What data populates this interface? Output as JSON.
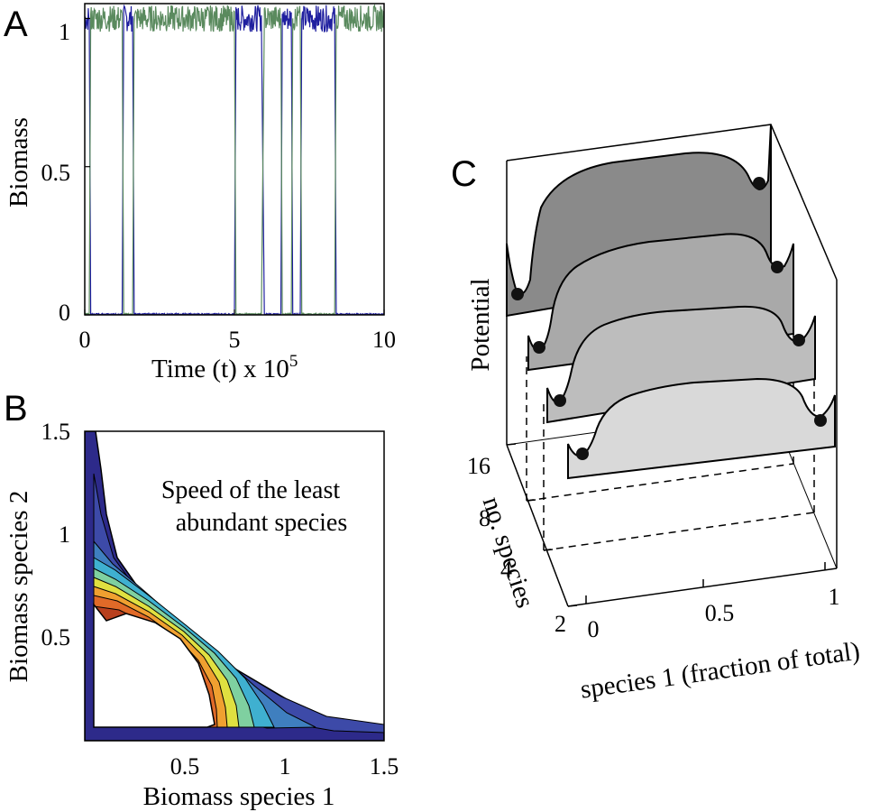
{
  "colors": {
    "series_1": "#1f1f9f",
    "series_2": "#5a8a5e",
    "contour_outer": "#2d2a8a",
    "contour_inner": "#b8401e",
    "potential_back": "#8a8a8a",
    "potential_front": "#d9d9d9"
  },
  "chart_data": [
    {
      "panel": "A",
      "type": "line",
      "xlabel": "Time (t) x 10",
      "xlabel_sup": "5",
      "ylabel": "Biomass",
      "xlim": [
        0,
        10
      ],
      "ylim": [
        0,
        1.05
      ],
      "xticks": [
        "0",
        "5",
        "10"
      ],
      "yticks": [
        "0",
        "0.5",
        "1"
      ],
      "series": [
        {
          "color": "#1f1f9f",
          "x": [
            0,
            0.15,
            0.2,
            1.25,
            1.3,
            1.6,
            1.65,
            5.0,
            5.05,
            5.9,
            6.0,
            6.55,
            6.6,
            6.9,
            6.95,
            7.2,
            7.25,
            8.35,
            8.4,
            10
          ],
          "y": [
            1,
            1,
            0,
            0,
            1,
            1,
            0,
            0,
            1,
            1,
            0,
            0,
            1,
            1,
            0,
            0,
            1,
            1,
            0,
            0
          ]
        },
        {
          "color": "#5a8a5e",
          "x": [
            0,
            0.15,
            0.2,
            1.25,
            1.3,
            1.6,
            1.65,
            5.0,
            5.05,
            5.9,
            6.0,
            6.55,
            6.6,
            6.9,
            6.95,
            7.2,
            7.25,
            8.35,
            8.4,
            10
          ],
          "y": [
            0,
            0,
            1,
            1,
            0,
            0,
            1,
            1,
            0,
            0,
            1,
            1,
            0,
            0,
            1,
            1,
            0,
            0,
            1,
            1
          ]
        }
      ]
    },
    {
      "panel": "B",
      "type": "heatmap",
      "xlabel": "Biomass species 1",
      "ylabel": "Biomass species 2",
      "annotation": [
        "Speed of the least",
        "abundant species"
      ],
      "xlim": [
        0,
        1.5
      ],
      "ylim": [
        0,
        1.5
      ],
      "xticks": [
        "0.5",
        "1",
        "1.5"
      ],
      "yticks": [
        "0.5",
        "1",
        "1.5"
      ],
      "levels": [
        "#2d2a8a",
        "#3d4aa8",
        "#3f7fbf",
        "#3fb0d0",
        "#7fd0a0",
        "#e0e040",
        "#f0a030",
        "#e06a28",
        "#b8401e"
      ]
    },
    {
      "panel": "C",
      "type": "area",
      "zlabel": "Potential",
      "ylabel": "no. species",
      "xlabel": "species 1 (fraction of total)",
      "xticks": [
        "0",
        "0.5",
        "1"
      ],
      "yticks": [
        "16",
        "8",
        "4",
        "2"
      ],
      "series": [
        {
          "name": "16",
          "minima": [
            0.0,
            1.0
          ]
        },
        {
          "name": "8",
          "minima": [
            0.0,
            1.0
          ]
        },
        {
          "name": "4",
          "minima": [
            0.0,
            1.0
          ]
        },
        {
          "name": "2",
          "minima": [
            0.0,
            1.0
          ]
        }
      ]
    }
  ]
}
